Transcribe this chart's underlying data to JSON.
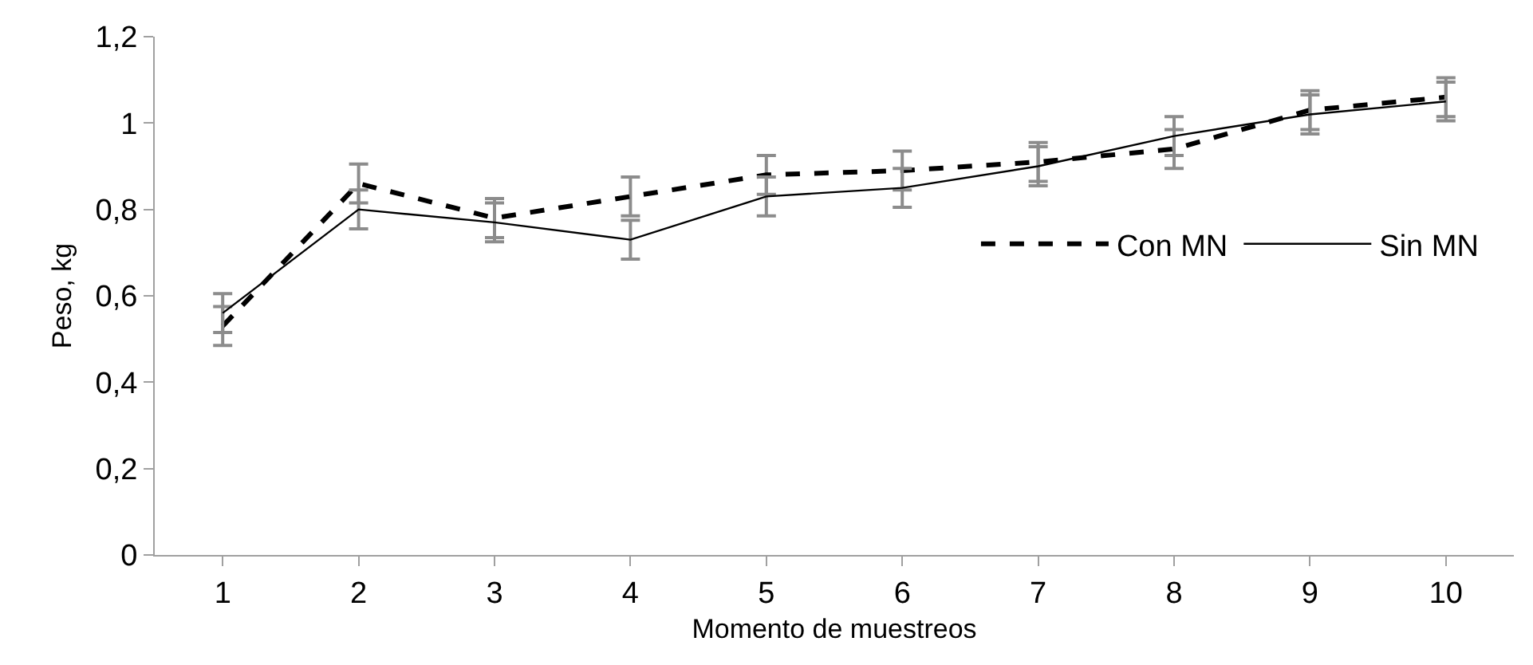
{
  "chart_data": {
    "type": "line",
    "xlabel": "Momento de muestreos",
    "ylabel": "Peso, kg",
    "categories": [
      "1",
      "2",
      "3",
      "4",
      "5",
      "6",
      "7",
      "8",
      "9",
      "10"
    ],
    "series": [
      {
        "name": "Con MN",
        "color": "#000000",
        "line_style": "dashed",
        "values": [
          0.53,
          0.86,
          0.78,
          0.83,
          0.88,
          0.89,
          0.91,
          0.94,
          1.03,
          1.06
        ],
        "errors": [
          0.045,
          0.045,
          0.045,
          0.045,
          0.045,
          0.045,
          0.045,
          0.045,
          0.045,
          0.045
        ]
      },
      {
        "name": "Sin MN",
        "color": "#000000",
        "line_style": "solid",
        "values": [
          0.56,
          0.8,
          0.77,
          0.73,
          0.83,
          0.85,
          0.9,
          0.97,
          1.02,
          1.05
        ],
        "errors": [
          0.045,
          0.045,
          0.045,
          0.045,
          0.045,
          0.045,
          0.045,
          0.045,
          0.045,
          0.045
        ]
      }
    ],
    "ylim": [
      0,
      1.2
    ],
    "yticks": [
      0,
      {
        "value": 0.2,
        "label": "0,2"
      },
      {
        "value": 0.4,
        "label": "0,4"
      },
      {
        "value": 0.6,
        "label": "0,6"
      },
      {
        "value": 0.8,
        "label": "0,8"
      },
      1,
      {
        "value": 1.2,
        "label": "1,2"
      }
    ],
    "legend": "right",
    "marker": "none"
  }
}
